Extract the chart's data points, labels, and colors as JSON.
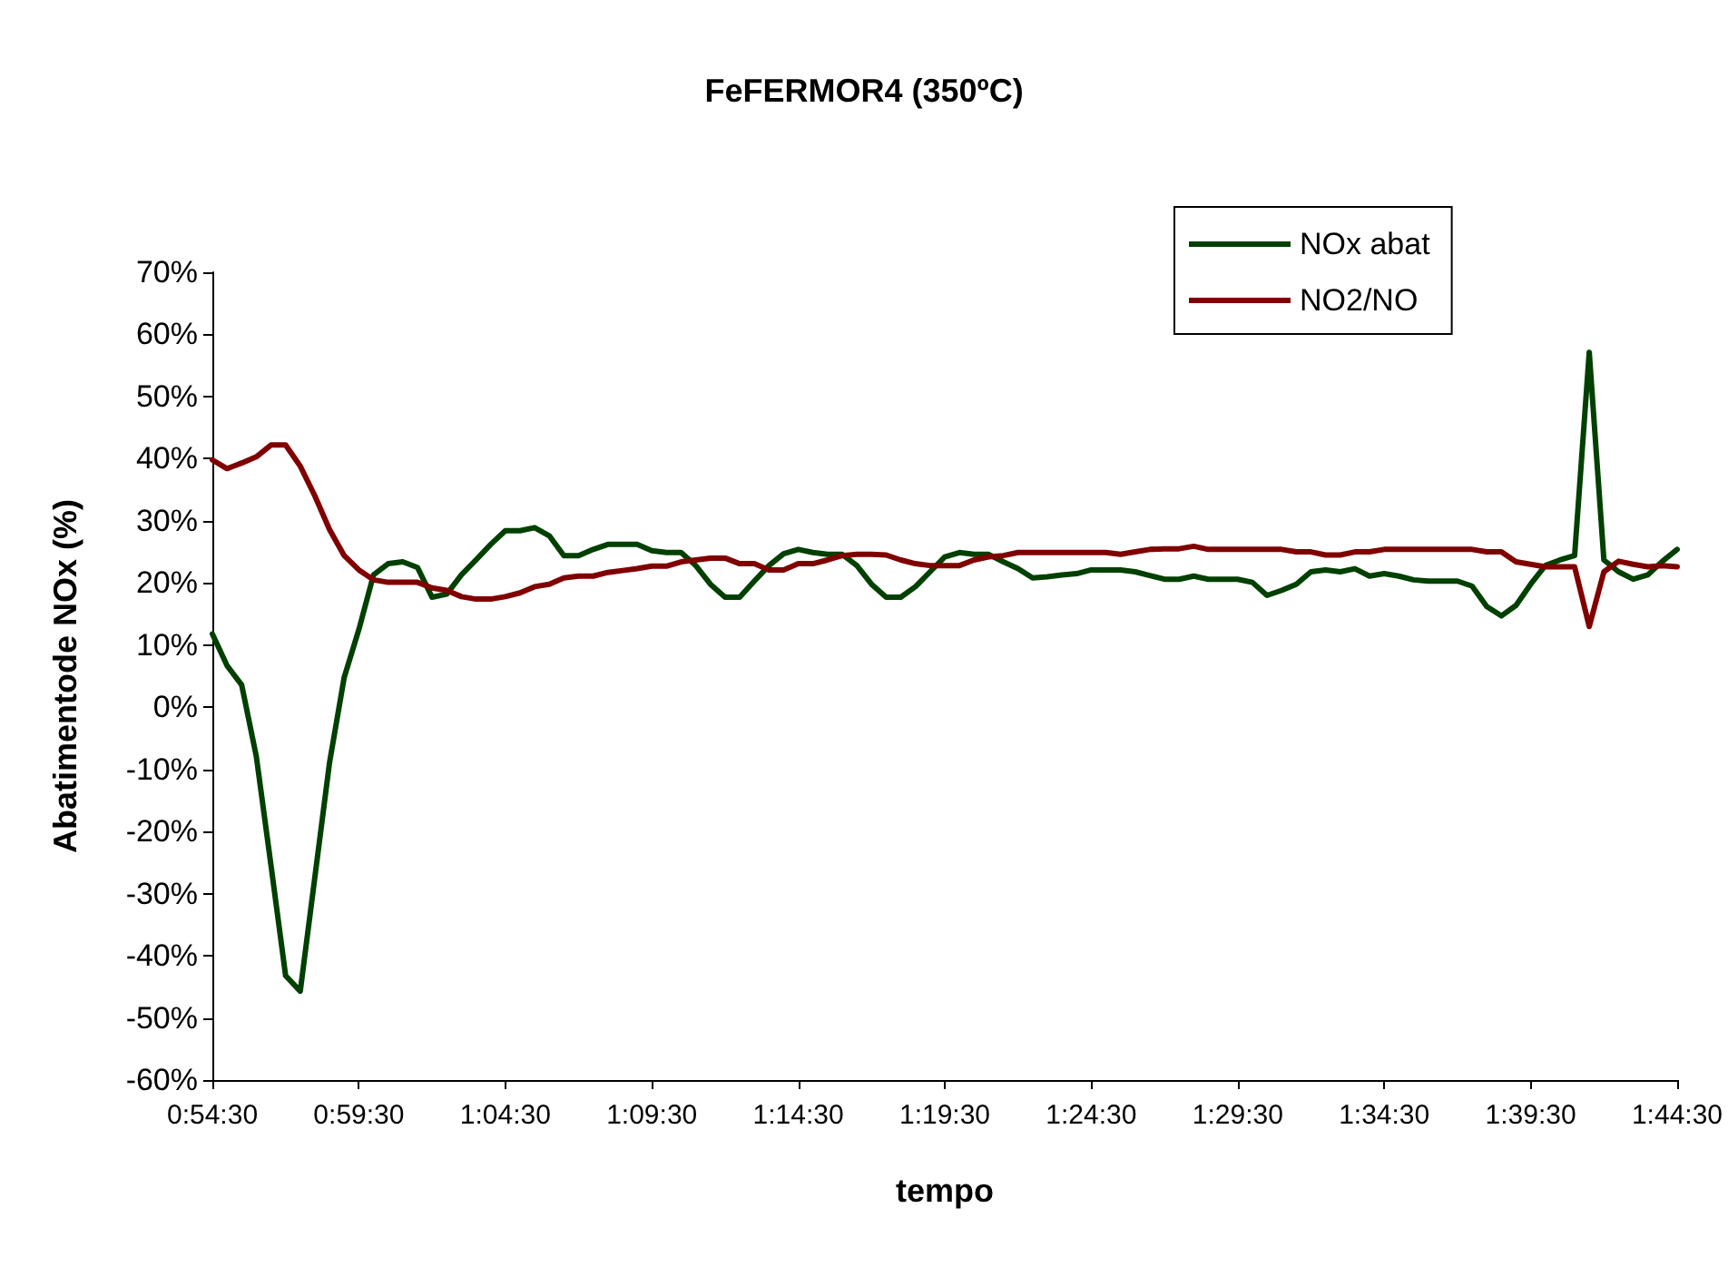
{
  "chart_data": {
    "type": "line",
    "title": "FeFERMOR4 (350ºC)",
    "xlabel": "tempo",
    "ylabel": "Abatimentode NOx (%)",
    "categories": [
      "0:54:30",
      null,
      null,
      null,
      null,
      null,
      null,
      null,
      null,
      null,
      "0:59:30",
      null,
      null,
      null,
      null,
      null,
      null,
      null,
      null,
      null,
      "1:04:30",
      null,
      null,
      null,
      null,
      null,
      null,
      null,
      null,
      null,
      "1:09:30",
      null,
      null,
      null,
      null,
      null,
      null,
      null,
      null,
      null,
      "1:14:30",
      null,
      null,
      null,
      null,
      null,
      null,
      null,
      null,
      null,
      "1:19:30",
      null,
      null,
      null,
      null,
      null,
      null,
      null,
      null,
      null,
      "1:24:30",
      null,
      null,
      null,
      null,
      null,
      null,
      null,
      null,
      null,
      "1:29:30",
      null,
      null,
      null,
      null,
      null,
      null,
      null,
      null,
      null,
      "1:34:30",
      null,
      null,
      null,
      null,
      null,
      null,
      null,
      null,
      null,
      "1:39:30",
      null,
      null,
      null,
      null,
      null,
      null,
      null,
      null,
      null,
      "1:44:30"
    ],
    "series": [
      {
        "name": "NOx abat",
        "color": "#004000",
        "values": [
          11.8,
          6.7,
          3.6,
          -7.9,
          -25.4,
          -43.2,
          -45.7,
          -27.3,
          -8.9,
          4.8,
          12.5,
          21.3,
          23.1,
          23.4,
          22.5,
          17.7,
          18.2,
          21.3,
          23.7,
          26.2,
          28.4,
          28.4,
          28.9,
          27.6,
          24.4,
          24.4,
          25.4,
          26.2,
          26.2,
          26.2,
          25.2,
          24.9,
          24.9,
          22.8,
          19.8,
          17.7,
          17.7,
          20.3,
          22.8,
          24.7,
          25.4,
          24.9,
          24.6,
          24.6,
          22.8,
          19.8,
          17.7,
          17.7,
          19.4,
          21.8,
          24.2,
          24.9,
          24.6,
          24.6,
          23.4,
          22.3,
          20.8,
          21.0,
          21.3,
          21.5,
          22.1,
          22.1,
          22.1,
          21.8,
          21.2,
          20.6,
          20.6,
          21.1,
          20.6,
          20.6,
          20.6,
          20.1,
          18.0,
          18.8,
          19.8,
          21.8,
          22.1,
          21.8,
          22.3,
          21.1,
          21.5,
          21.1,
          20.5,
          20.3,
          20.3,
          20.3,
          19.5,
          16.2,
          14.7,
          16.4,
          19.8,
          22.8,
          23.7,
          24.4,
          57.1,
          23.7,
          21.8,
          20.6,
          21.3,
          23.5,
          25.4
        ]
      },
      {
        "name": "NO2/NO",
        "color": "#800000",
        "values": [
          39.8,
          38.4,
          39.3,
          40.3,
          42.2,
          42.2,
          38.8,
          34.0,
          28.6,
          24.4,
          22.1,
          20.5,
          20.1,
          20.1,
          20.1,
          19.2,
          18.8,
          17.8,
          17.4,
          17.4,
          17.8,
          18.4,
          19.4,
          19.8,
          20.8,
          21.1,
          21.1,
          21.7,
          22.0,
          22.3,
          22.7,
          22.7,
          23.4,
          23.7,
          24.0,
          24.0,
          23.1,
          23.1,
          22.1,
          22.1,
          23.1,
          23.1,
          23.7,
          24.4,
          24.6,
          24.6,
          24.5,
          23.7,
          23.1,
          22.8,
          22.8,
          22.8,
          23.7,
          24.2,
          24.4,
          24.9,
          24.9,
          24.9,
          24.9,
          24.9,
          24.9,
          24.9,
          24.6,
          25.0,
          25.4,
          25.5,
          25.5,
          25.9,
          25.4,
          25.4,
          25.4,
          25.4,
          25.4,
          25.4,
          25.0,
          25.0,
          24.5,
          24.5,
          25.0,
          25.0,
          25.4,
          25.4,
          25.4,
          25.4,
          25.4,
          25.4,
          25.4,
          25.0,
          25.0,
          23.4,
          23.0,
          22.6,
          22.6,
          22.6,
          13.0,
          21.8,
          23.5,
          23.0,
          22.6,
          22.8,
          22.6
        ]
      }
    ],
    "ylim": [
      -60,
      70
    ],
    "yticks": [
      {
        "value": -60,
        "label": "-60%"
      },
      {
        "value": -50,
        "label": "-50%"
      },
      {
        "value": -40,
        "label": "-40%"
      },
      {
        "value": -30,
        "label": "-30%"
      },
      {
        "value": -20,
        "label": "-20%"
      },
      {
        "value": -10,
        "label": "-10%"
      },
      {
        "value": 0,
        "label": "0%"
      },
      {
        "value": 10,
        "label": "10%"
      },
      {
        "value": 20,
        "label": "20%"
      },
      {
        "value": 30,
        "label": "30%"
      },
      {
        "value": 40,
        "label": "40%"
      },
      {
        "value": 50,
        "label": "50%"
      },
      {
        "value": 60,
        "label": "60%"
      },
      {
        "value": 70,
        "label": "70%"
      }
    ],
    "grid": false,
    "legend": "top right",
    "marker": "none",
    "line_style": "solid"
  }
}
